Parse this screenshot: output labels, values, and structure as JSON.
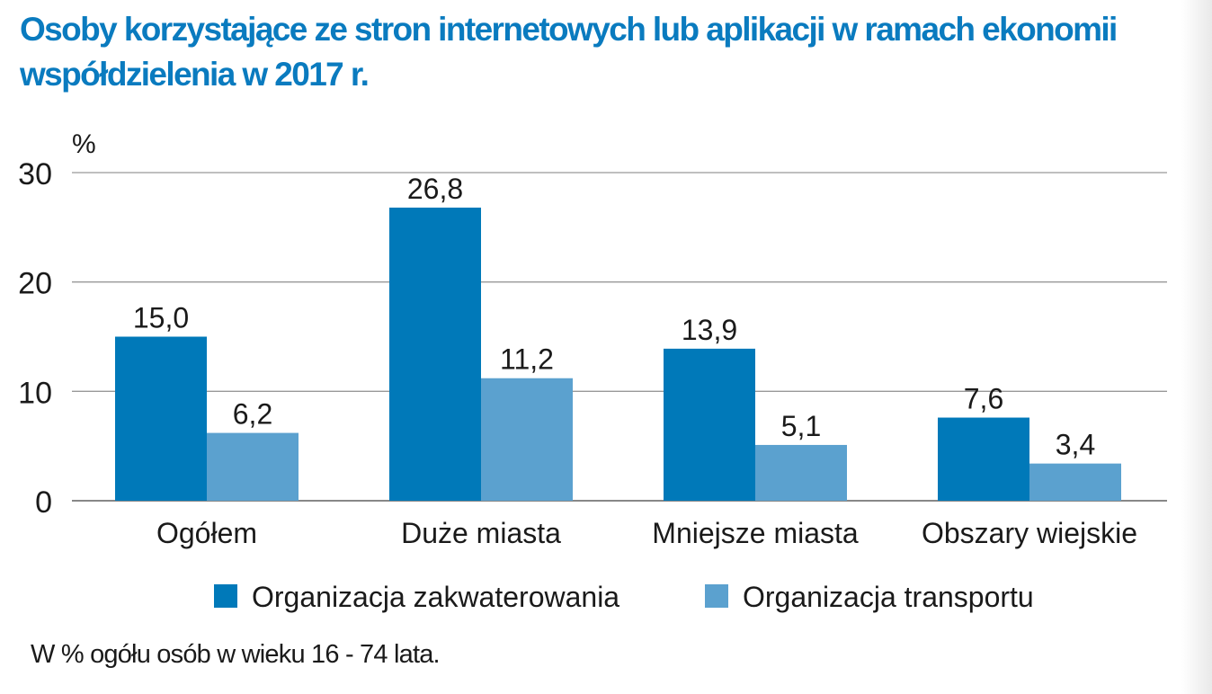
{
  "title": "Osoby korzystające ze stron internetowych lub aplikacji w ramach ekonomii współdzielenia w 2017 r.",
  "note": "W % ogółu osób w wieku 16 - 74 lata.",
  "chart_data": {
    "type": "bar",
    "title": "Osoby korzystające ze stron internetowych lub aplikacji w ramach ekonomii współdzielenia w 2017 r.",
    "ylabel": "%",
    "ylim": [
      0,
      30
    ],
    "yticks": [
      "0",
      "10",
      "20",
      "30"
    ],
    "grid": true,
    "legend_position": "bottom",
    "categories": [
      "Ogółem",
      "Duże miasta",
      "Mniejsze miasta",
      "Obszary wiejskie"
    ],
    "series": [
      {
        "name": "Organizacja zakwaterowania",
        "color": "#0079b9",
        "values": [
          15.0,
          26.8,
          13.9,
          7.6
        ],
        "labels": [
          "15,0",
          "26,8",
          "13,9",
          "7,6"
        ]
      },
      {
        "name": "Organizacja transportu",
        "color": "#5ba1cf",
        "values": [
          6.2,
          11.2,
          5.1,
          3.4
        ],
        "labels": [
          "6,2",
          "11,2",
          "5,1",
          "3,4"
        ]
      }
    ]
  }
}
